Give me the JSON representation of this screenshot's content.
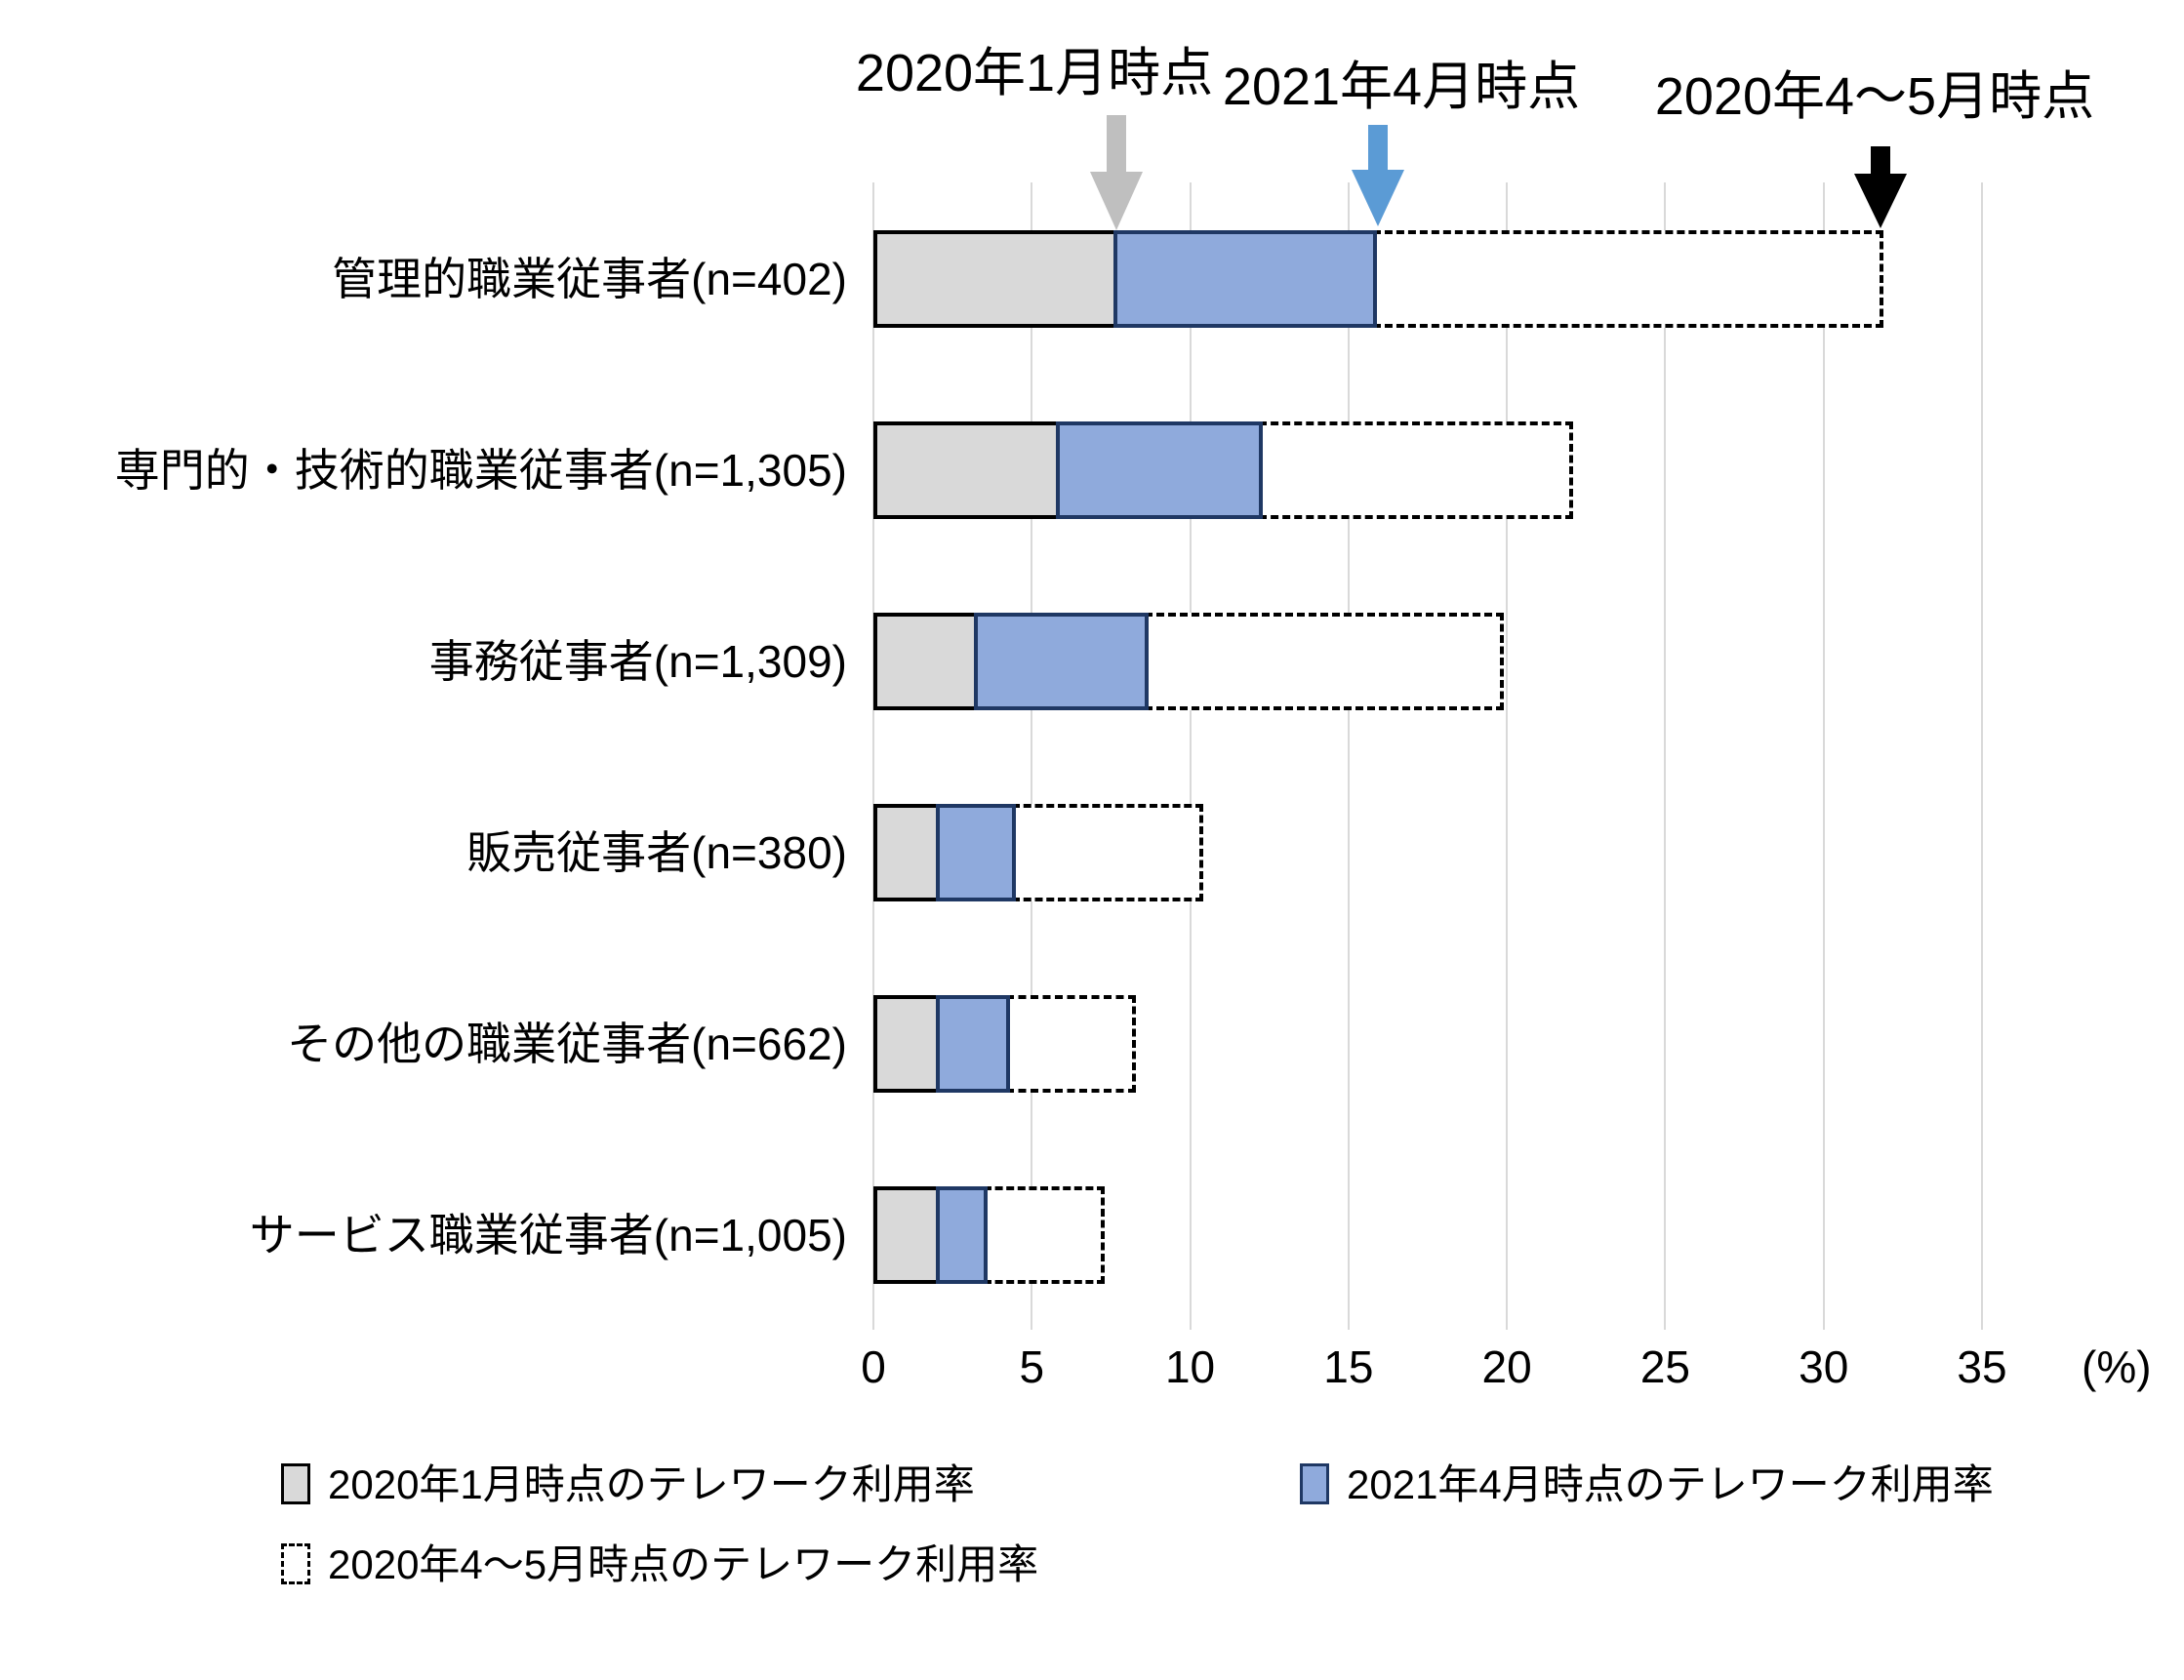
{
  "chart_data": {
    "type": "bar",
    "orientation": "horizontal",
    "title": "",
    "xlabel": "",
    "ylabel": "",
    "x_unit_label": "(%)",
    "xlim": [
      0,
      35
    ],
    "xticks": [
      0,
      5,
      10,
      15,
      20,
      25,
      30,
      35
    ],
    "grid": "vertical",
    "legend_position": "bottom",
    "categories": [
      "管理的職業従事者(n=402)",
      "専門的・技術的職業従事者(n=1,305)",
      "事務従事者(n=1,309)",
      "販売従事者(n=380)",
      "その他の職業従事者(n=662)",
      "サービス職業従事者(n=1,005)"
    ],
    "series": [
      {
        "name": "2020年1月時点のテレワーク利用率",
        "fill": "#D9D9D9",
        "border": "#000000",
        "border_style": "solid",
        "values": [
          7.7,
          5.9,
          3.3,
          2.1,
          2.1,
          2.1
        ]
      },
      {
        "name": "2021年4月時点のテレワーク利用率",
        "fill": "#8FAADC",
        "border": "#1F3864",
        "border_style": "solid",
        "values": [
          15.9,
          12.3,
          8.7,
          4.5,
          4.3,
          3.6
        ]
      },
      {
        "name": "2020年4～5月時点のテレワーク利用率",
        "fill": "#FFFFFF",
        "border": "#000000",
        "border_style": "dashed",
        "values": [
          31.9,
          22.1,
          19.9,
          10.4,
          8.3,
          7.3
        ]
      }
    ],
    "note": "values are telework usage rates (%); each bar shows the three time points as back-to-back segments ending at each rate"
  },
  "annotations": [
    {
      "label": "2020年1月時点",
      "arrow_color": "#BFBFBF",
      "points_to_pct": 7.7
    },
    {
      "label": "2021年4月時点",
      "arrow_color": "#5B9BD5",
      "points_to_pct": 15.9
    },
    {
      "label": "2020年4～5月時点",
      "arrow_color": "#000000",
      "points_to_pct": 31.9
    }
  ],
  "legend": {
    "items": [
      {
        "label": "2020年1月時点のテレワーク利用率",
        "swatch": "gray"
      },
      {
        "label": "2021年4月時点のテレワーク利用率",
        "swatch": "blue"
      },
      {
        "label": "2020年4～5月時点のテレワーク利用率",
        "swatch": "dashed"
      }
    ]
  },
  "colors": {
    "gray_fill": "#D9D9D9",
    "blue_fill": "#8FAADC",
    "blue_border": "#1F3864",
    "black": "#000000",
    "gridline": "#D9D9D9",
    "arrow_gray": "#BFBFBF",
    "arrow_blue": "#5B9BD5",
    "arrow_black": "#000000"
  }
}
